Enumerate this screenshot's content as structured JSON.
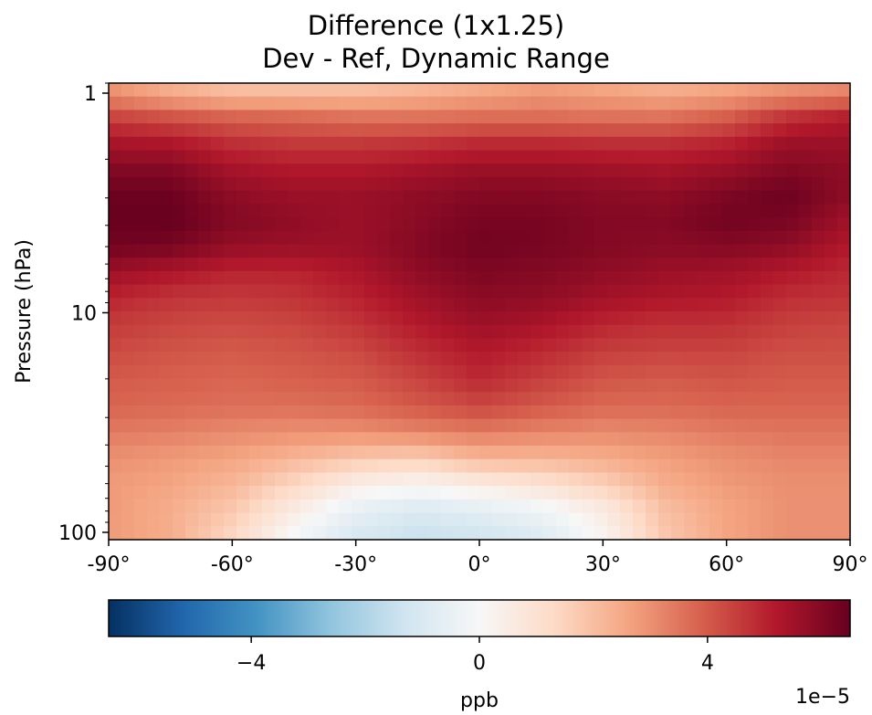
{
  "chart_data": {
    "type": "heatmap",
    "title": "Difference (1x1.25)",
    "subtitle": "Dev - Ref, Dynamic Range",
    "ylabel": "Pressure (hPa)",
    "xlabel": "",
    "x_range": [
      -90,
      90
    ],
    "y_range": [
      1,
      100
    ],
    "y_scale": "log",
    "y_inverted": true,
    "xticks": [
      "-90°",
      "-60°",
      "-30°",
      "0°",
      "30°",
      "60°",
      "90°"
    ],
    "xtick_values": [
      -90,
      -60,
      -30,
      0,
      30,
      60,
      90
    ],
    "yticks": [
      "1",
      "10",
      "100"
    ],
    "ytick_values": [
      1,
      10,
      100
    ],
    "colormap": "RdBu_r",
    "colorbar": {
      "label": "ppb",
      "range": [
        -6.5e-05,
        6.5e-05
      ],
      "ticks": [
        "−4",
        "0",
        "4"
      ],
      "tick_values": [
        -4,
        0,
        4
      ],
      "offset_text": "1e−5",
      "orientation": "horizontal"
    },
    "latitudes": [
      -90,
      -75,
      -60,
      -45,
      -30,
      -15,
      0,
      15,
      30,
      45,
      60,
      75,
      90
    ],
    "pressure_levels": [
      1,
      1.3,
      1.7,
      2.2,
      2.9,
      3.8,
      5,
      6.5,
      8.5,
      11,
      15,
      20,
      27,
      35,
      46,
      60,
      78,
      100
    ],
    "values_1e-5": [
      [
        3.0,
        2.4,
        2.0,
        2.0,
        2.0,
        2.2,
        2.5,
        2.8,
        2.6,
        2.4,
        2.6,
        3.0,
        3.2
      ],
      [
        4.5,
        4.2,
        3.9,
        3.8,
        3.6,
        3.6,
        3.7,
        3.7,
        3.6,
        3.6,
        4.0,
        4.8,
        5.2
      ],
      [
        5.4,
        5.3,
        4.8,
        4.6,
        4.6,
        4.7,
        4.9,
        4.9,
        4.8,
        4.8,
        5.0,
        5.6,
        5.6
      ],
      [
        6.0,
        6.0,
        5.4,
        5.2,
        5.2,
        5.4,
        5.6,
        5.6,
        5.5,
        5.4,
        5.6,
        6.0,
        5.8
      ],
      [
        6.4,
        6.4,
        5.8,
        5.6,
        5.6,
        5.8,
        6.0,
        6.0,
        5.9,
        5.8,
        6.1,
        6.4,
        5.8
      ],
      [
        6.5,
        6.5,
        6.0,
        5.8,
        5.6,
        5.9,
        6.2,
        6.2,
        6.0,
        6.0,
        6.3,
        6.2,
        5.5
      ],
      [
        6.3,
        6.2,
        5.7,
        5.6,
        5.6,
        6.0,
        6.3,
        6.2,
        6.0,
        5.9,
        6.0,
        5.8,
        5.2
      ],
      [
        5.6,
        5.3,
        5.0,
        5.0,
        5.3,
        5.8,
        6.1,
        6.0,
        5.8,
        5.6,
        5.5,
        5.2,
        4.9
      ],
      [
        5.0,
        4.7,
        4.6,
        4.7,
        5.0,
        5.5,
        5.9,
        5.8,
        5.5,
        5.3,
        5.2,
        4.8,
        4.7
      ],
      [
        4.6,
        4.4,
        4.3,
        4.4,
        4.7,
        5.2,
        5.6,
        5.4,
        5.0,
        4.8,
        4.8,
        4.5,
        4.4
      ],
      [
        4.3,
        4.1,
        4.0,
        4.1,
        4.3,
        4.8,
        5.2,
        4.9,
        4.5,
        4.4,
        4.4,
        4.2,
        4.2
      ],
      [
        4.0,
        3.9,
        3.8,
        3.9,
        4.0,
        4.4,
        4.9,
        4.5,
        4.1,
        4.0,
        4.1,
        4.0,
        4.0
      ],
      [
        3.8,
        3.7,
        3.6,
        3.6,
        3.7,
        4.0,
        4.3,
        4.0,
        3.7,
        3.7,
        3.8,
        3.8,
        3.8
      ],
      [
        3.4,
        3.3,
        3.1,
        3.0,
        3.0,
        3.2,
        3.4,
        3.2,
        3.1,
        3.2,
        3.4,
        3.5,
        3.5
      ],
      [
        3.0,
        2.8,
        2.6,
        2.2,
        1.8,
        1.6,
        2.2,
        2.2,
        2.4,
        2.7,
        3.0,
        3.2,
        3.2
      ],
      [
        2.8,
        2.6,
        2.2,
        1.4,
        0.5,
        0.2,
        0.6,
        1.0,
        1.6,
        2.4,
        2.8,
        3.0,
        3.0
      ],
      [
        2.8,
        2.4,
        1.8,
        0.6,
        -0.5,
        -0.9,
        -0.6,
        -0.2,
        0.6,
        2.0,
        2.6,
        3.0,
        3.0
      ],
      [
        2.8,
        2.4,
        1.4,
        0.0,
        -1.0,
        -1.4,
        -1.2,
        -0.8,
        0.2,
        1.8,
        2.6,
        3.0,
        3.0
      ]
    ]
  }
}
